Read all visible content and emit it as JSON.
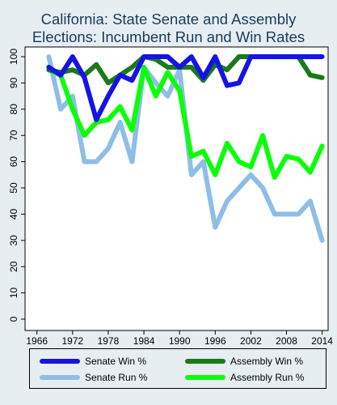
{
  "chart_data": {
    "type": "line",
    "title_line1": "California: State Senate and Assembly",
    "title_line2": "Elections: Incumbent Run and Win Rates",
    "xlabel": "",
    "ylabel": "",
    "xlim": [
      1964,
      2015
    ],
    "ylim": [
      0,
      100
    ],
    "x_ticks": [
      1966,
      1972,
      1978,
      1984,
      1990,
      1996,
      2002,
      2008,
      2014
    ],
    "y_ticks": [
      0,
      10,
      20,
      30,
      40,
      50,
      60,
      70,
      80,
      90,
      100
    ],
    "grid": false,
    "legend_placement": "bottom",
    "x": [
      1968,
      1970,
      1972,
      1974,
      1976,
      1978,
      1980,
      1982,
      1984,
      1986,
      1988,
      1990,
      1992,
      1994,
      1996,
      1998,
      2000,
      2002,
      2004,
      2006,
      2008,
      2010,
      2012,
      2014
    ],
    "series": [
      {
        "name": "Senate Win %",
        "color": "#1414e6",
        "values": [
          96,
          93,
          100,
          92,
          76,
          85,
          93,
          91,
          100,
          100,
          100,
          96,
          100,
          92,
          100,
          89,
          90,
          100,
          100,
          100,
          100,
          100,
          100,
          100
        ]
      },
      {
        "name": "Assembly Win %",
        "color": "#1a7a1a",
        "values": [
          95,
          94,
          95,
          93,
          97,
          90,
          93,
          96,
          100,
          99,
          96,
          96,
          96,
          91,
          97,
          95,
          100,
          100,
          100,
          100,
          100,
          100,
          93,
          92
        ]
      },
      {
        "name": "Senate Run %",
        "color": "#8ebee6",
        "values": [
          100,
          80,
          85,
          60,
          60,
          65,
          75,
          60,
          96,
          90,
          85,
          95,
          55,
          60,
          35,
          45,
          50,
          55,
          50,
          40,
          40,
          40,
          45,
          30
        ]
      },
      {
        "name": "Assembly Run %",
        "color": "#0aff0a",
        "values": [
          95,
          93,
          80,
          70,
          75,
          76,
          81,
          72,
          96,
          85,
          94,
          87,
          62,
          64,
          55,
          67,
          60,
          58,
          70,
          54,
          62,
          61,
          56,
          66
        ]
      }
    ]
  }
}
